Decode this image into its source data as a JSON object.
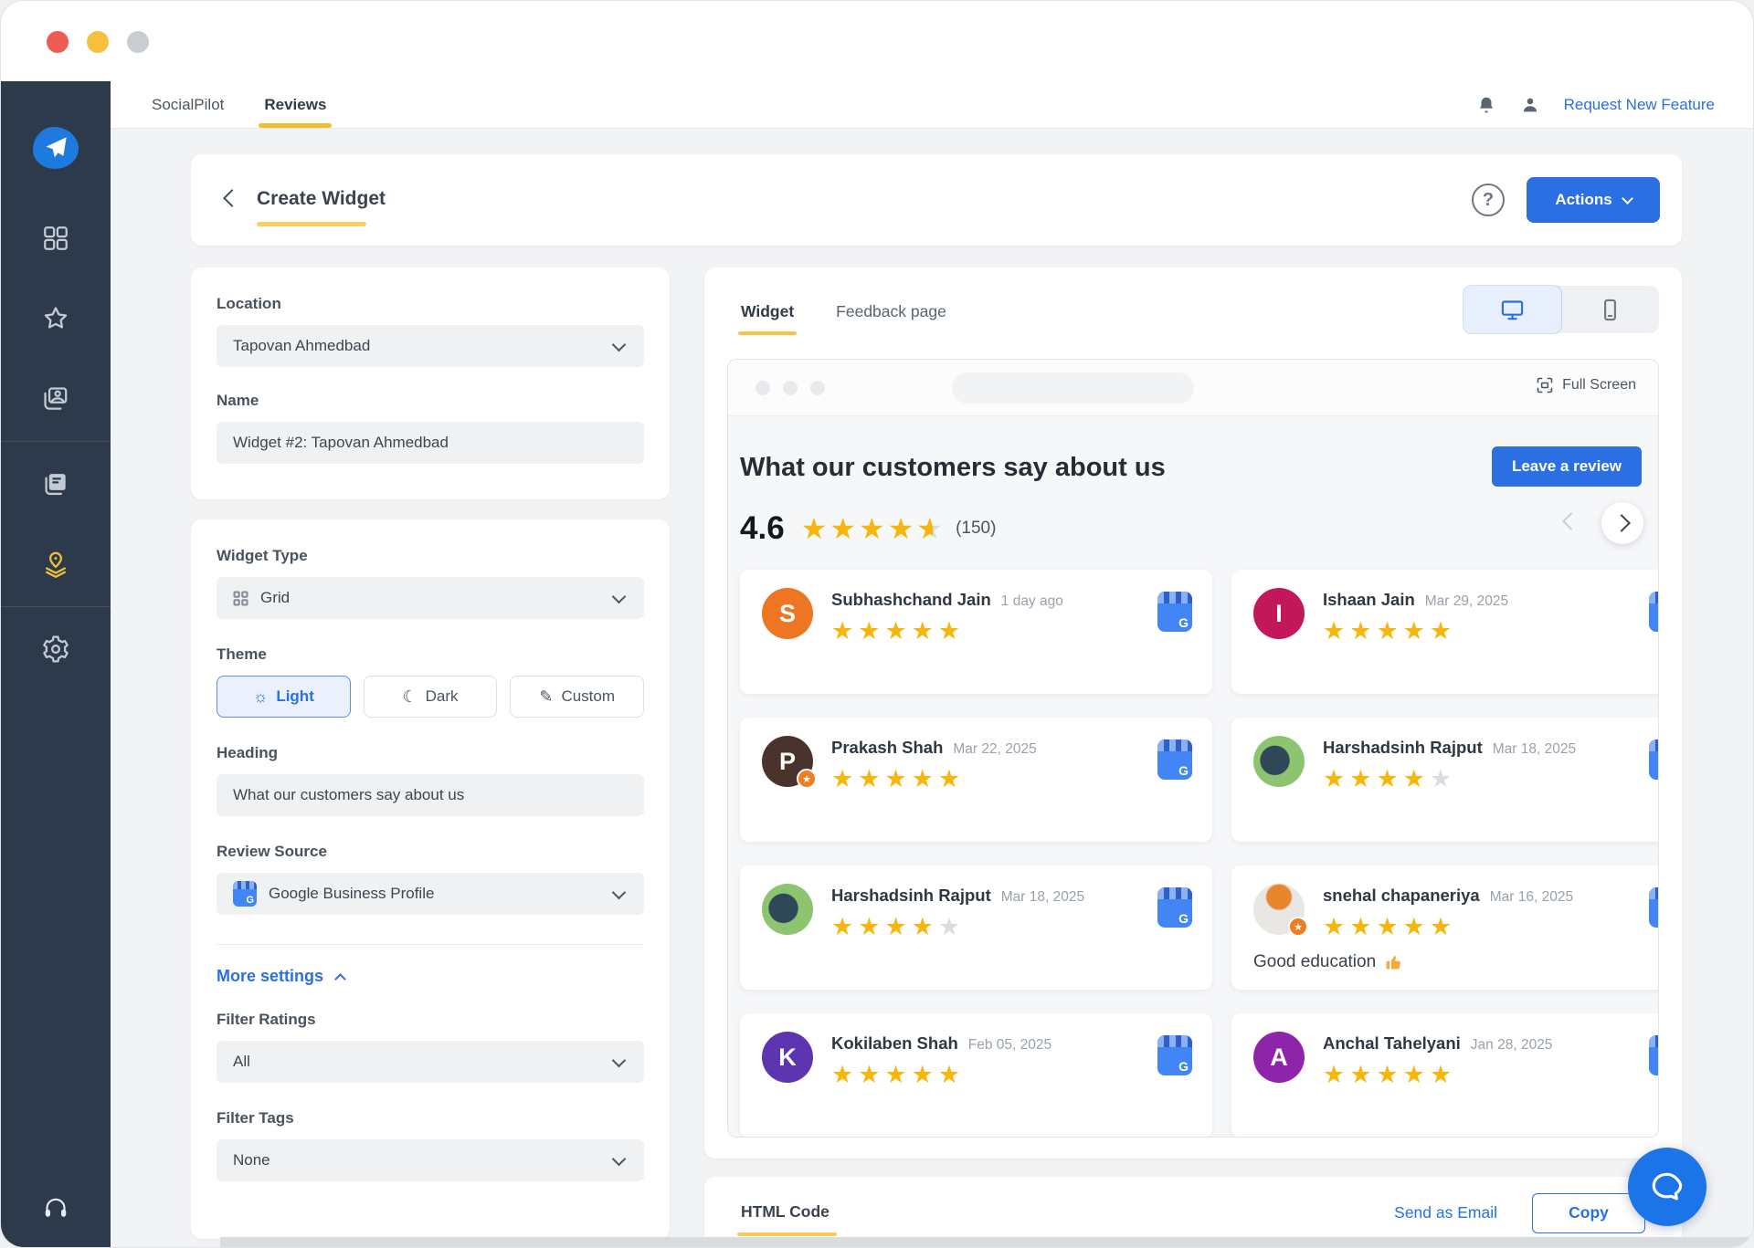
{
  "topnav": {
    "tabs": [
      {
        "label": "SocialPilot"
      },
      {
        "label": "Reviews"
      }
    ],
    "request_feature": "Request New Feature"
  },
  "sidebar": {
    "items": [
      {
        "type": "logo",
        "icon": "socialpilot-logo"
      },
      {
        "type": "item",
        "icon": "dashboard"
      },
      {
        "type": "item",
        "icon": "star"
      },
      {
        "type": "item",
        "icon": "media"
      },
      {
        "type": "divider"
      },
      {
        "type": "item",
        "icon": "posts"
      },
      {
        "type": "item",
        "icon": "reviews-location",
        "active": true
      },
      {
        "type": "divider"
      },
      {
        "type": "item",
        "icon": "settings"
      }
    ],
    "footer_icon": "headset"
  },
  "page_header": {
    "title": "Create Widget",
    "help": "?",
    "actions_label": "Actions"
  },
  "form": {
    "location": {
      "label": "Location",
      "value": "Tapovan Ahmedbad"
    },
    "name": {
      "label": "Name",
      "value": "Widget #2: Tapovan Ahmedbad"
    },
    "widget_type": {
      "label": "Widget Type",
      "value": "Grid"
    },
    "theme": {
      "label": "Theme",
      "options": [
        {
          "label": "Light",
          "icon": "sun",
          "active": true
        },
        {
          "label": "Dark",
          "icon": "moon",
          "active": false
        },
        {
          "label": "Custom",
          "icon": "pen",
          "active": false
        }
      ]
    },
    "heading": {
      "label": "Heading",
      "value": "What our customers say about us"
    },
    "review_source": {
      "label": "Review Source",
      "value": "Google Business Profile"
    },
    "more_settings_label": "More settings",
    "filter_ratings": {
      "label": "Filter Ratings",
      "value": "All"
    },
    "filter_tags": {
      "label": "Filter Tags",
      "value": "None"
    }
  },
  "preview": {
    "tabs": [
      {
        "label": "Widget",
        "active": true
      },
      {
        "label": "Feedback page",
        "active": false
      }
    ],
    "full_screen_label": "Full Screen",
    "widget": {
      "heading": "What our customers say about us",
      "leave_review_label": "Leave a review",
      "rating": "4.6",
      "rating_stars": 4.6,
      "review_count": "(150)",
      "reviews": [
        {
          "name": "Subhashchand Jain",
          "date": "1 day ago",
          "stars": 5,
          "source": "google",
          "avatar": {
            "kind": "letter",
            "letter": "S",
            "color": "#ee7622"
          }
        },
        {
          "name": "Ishaan Jain",
          "date": "Mar 29, 2025",
          "stars": 5,
          "source": "google",
          "avatar": {
            "kind": "letter",
            "letter": "I",
            "color": "#c2185b"
          }
        },
        {
          "name": "Prakash Shah",
          "date": "Mar 22, 2025",
          "stars": 5,
          "source": "google",
          "avatar": {
            "kind": "letter",
            "letter": "P",
            "color": "#4a332c",
            "badge": true
          }
        },
        {
          "name": "Harshadsinh Rajput",
          "date": "Mar 18, 2025",
          "stars": 4,
          "source": "google",
          "avatar": {
            "kind": "photo",
            "photo": "person-green"
          }
        },
        {
          "name": "Harshadsinh Rajput",
          "date": "Mar 18, 2025",
          "stars": 4,
          "source": "google",
          "avatar": {
            "kind": "photo",
            "photo": "person-green"
          }
        },
        {
          "name": "snehal chapaneriya",
          "date": "Mar 16, 2025",
          "stars": 5,
          "source": "google",
          "text": "Good education",
          "emoji": "thumbs-up",
          "avatar": {
            "kind": "photo",
            "photo": "logo-light",
            "badge": true
          }
        },
        {
          "name": "Kokilaben Shah",
          "date": "Feb 05, 2025",
          "stars": 5,
          "source": "google",
          "avatar": {
            "kind": "letter",
            "letter": "K",
            "color": "#5e35b1"
          }
        },
        {
          "name": "Anchal Tahelyani",
          "date": "Jan 28, 2025",
          "stars": 5,
          "source": "google",
          "avatar": {
            "kind": "letter",
            "letter": "A",
            "color": "#8e24aa"
          }
        }
      ]
    }
  },
  "footer_bar": {
    "html_code_label": "HTML Code",
    "send_email_label": "Send as Email",
    "copy_label": "Copy"
  },
  "colors": {
    "accent_yellow": "#f4bd2e",
    "primary_blue": "#2b6fe3",
    "star_gold": "#f6b60b",
    "star_empty": "#d9dce1",
    "sidebar_bg": "#2d3a4c",
    "sidebar_active": "#f2c230"
  }
}
